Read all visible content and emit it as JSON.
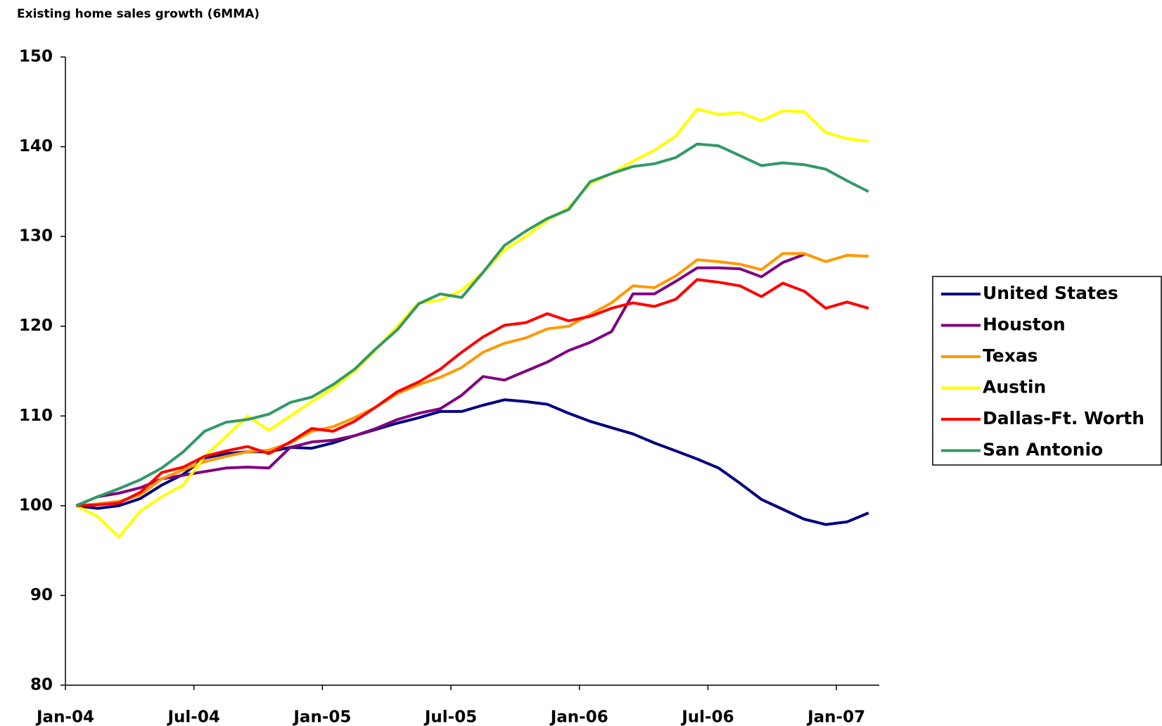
{
  "chart_data": {
    "type": "line",
    "title": "Existing home sales growth (6MMA)",
    "categories": [
      "Jan-04",
      null,
      null,
      null,
      null,
      null,
      "Jul-04",
      null,
      null,
      null,
      null,
      null,
      "Jan-05",
      null,
      null,
      null,
      null,
      null,
      "Jul-05",
      null,
      null,
      null,
      null,
      null,
      "Jan-06",
      null,
      null,
      null,
      null,
      null,
      "Jul-06",
      null,
      null,
      null,
      null,
      null,
      "Jan-07",
      null
    ],
    "ylim": [
      80,
      150
    ],
    "yticks": [
      80,
      90,
      100,
      110,
      120,
      130,
      140,
      150
    ],
    "legend": "right",
    "series": [
      {
        "name": "United States",
        "color": "#000080",
        "values": [
          100,
          99.7,
          100,
          100.8,
          102.3,
          103.5,
          105.3,
          105.8,
          106.0,
          106.0,
          106.5,
          106.4,
          107.0,
          107.8,
          108.5,
          109.2,
          109.8,
          110.5,
          110.5,
          111.2,
          111.8,
          111.6,
          111.3,
          110.3,
          109.4,
          108.7,
          108.0,
          107.0,
          106.1,
          105.2,
          104.2,
          102.5,
          100.7,
          99.6,
          98.5,
          97.9,
          98.2,
          99.2
        ]
      },
      {
        "name": "Houston",
        "color": "#800080",
        "values": [
          100,
          101,
          101.4,
          102,
          103,
          103.4,
          103.8,
          104.2,
          104.3,
          104.2,
          106.5,
          107.1,
          107.3,
          107.8,
          108.6,
          109.6,
          110.3,
          110.8,
          112.3,
          114.4,
          114.0,
          115.0,
          116.0,
          117.3,
          118.2,
          119.4,
          123.6,
          123.6,
          125.0,
          126.5,
          126.5,
          126.4,
          125.5,
          127.1,
          128.0,
          null,
          null,
          null
        ]
      },
      {
        "name": "Texas",
        "color": "#ff9900",
        "values": [
          100,
          100.2,
          100.5,
          101.2,
          103,
          104,
          104.9,
          105.5,
          106.0,
          106.2,
          107.0,
          108.3,
          108.8,
          109.8,
          111.0,
          112.5,
          113.5,
          114.3,
          115.4,
          117.1,
          118.1,
          118.7,
          119.7,
          120.0,
          121.3,
          122.6,
          124.5,
          124.3,
          125.6,
          127.4,
          127.2,
          126.9,
          126.3,
          128.1,
          128.1,
          127.2,
          127.9,
          127.8
        ]
      },
      {
        "name": "Austin",
        "color": "#ffff00",
        "values": [
          100,
          98.8,
          96.5,
          99.4,
          101.0,
          102.3,
          105.5,
          107.7,
          110.0,
          108.4,
          110.0,
          111.6,
          113.1,
          115.0,
          117.4,
          120.0,
          122.6,
          122.9,
          124.0,
          126.0,
          128.5,
          130.0,
          131.8,
          133.2,
          135.9,
          137.0,
          138.4,
          139.6,
          141.2,
          144.2,
          143.6,
          143.8,
          142.9,
          144.0,
          143.9,
          141.6,
          140.9,
          140.6
        ]
      },
      {
        "name": "Dallas-Ft. Worth",
        "color": "#ff0000",
        "values": [
          100,
          100.1,
          100.3,
          101.5,
          103.7,
          104.3,
          105.5,
          106.1,
          106.6,
          105.8,
          107.1,
          108.6,
          108.3,
          109.4,
          111.0,
          112.7,
          113.8,
          115.2,
          117.1,
          118.8,
          120.1,
          120.4,
          121.4,
          120.6,
          121.1,
          122.0,
          122.6,
          122.2,
          123.0,
          125.2,
          124.9,
          124.5,
          123.3,
          124.8,
          123.9,
          122.0,
          122.7,
          122.0
        ]
      },
      {
        "name": "San Antonio",
        "color": "#339966",
        "values": [
          100,
          101,
          101.9,
          102.9,
          104.2,
          106.0,
          108.3,
          109.3,
          109.6,
          110.2,
          111.5,
          112.1,
          113.5,
          115.2,
          117.5,
          119.6,
          122.5,
          123.6,
          123.2,
          126.0,
          129.0,
          130.6,
          132.0,
          133.0,
          136.1,
          137.0,
          137.8,
          138.1,
          138.8,
          140.3,
          140.1,
          139.0,
          137.9,
          138.2,
          138.0,
          137.5,
          136.2,
          135.0
        ]
      }
    ]
  }
}
